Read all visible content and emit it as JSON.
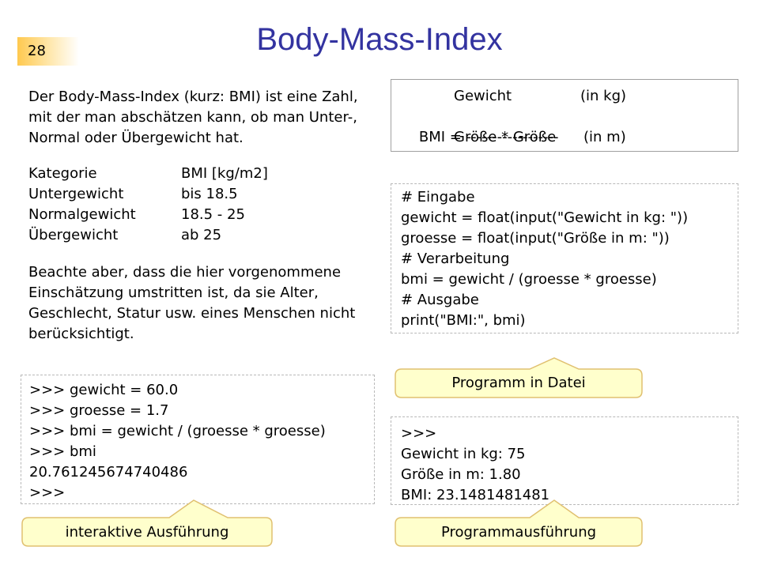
{
  "slide": {
    "page_number": "28",
    "title": "Body-Mass-Index"
  },
  "intro": [
    "Der Body-Mass-Index (kurz: BMI) ist eine Zahl,",
    "mit der man abschätzen kann, ob man Unter-,",
    "Normal oder Übergewicht hat."
  ],
  "bmi_table": {
    "headers": [
      "Kategorie",
      "BMI [kg/m2]"
    ],
    "rows": [
      [
        "Untergewicht",
        "bis 18.5"
      ],
      [
        "Normalgewicht",
        "18.5 - 25"
      ],
      [
        "Übergewicht",
        "ab 25"
      ]
    ]
  },
  "note": [
    "Beachte aber, dass die hier vorgenommene",
    "Einschätzung umstritten ist, da sie Alter,",
    "Geschlecht, Statur usw. eines Menschen nicht",
    "berücksichtigt."
  ],
  "formula": {
    "numerator": "Gewicht",
    "numerator_unit": "(in kg)",
    "lhs": "BMI = ",
    "fraction_bar": "------------------",
    "denominator": "Größe * Größe",
    "denominator_unit": "(in m)"
  },
  "program_code": [
    "# Eingabe",
    "gewicht = float(input(\"Gewicht in kg: \"))",
    "groesse = float(input(\"Größe in m: \"))",
    "# Verarbeitung",
    "bmi = gewicht / (groesse * groesse)",
    "# Ausgabe",
    "print(\"BMI:\", bmi)"
  ],
  "program_label": "Programm in Datei",
  "interactive_session": [
    ">>> gewicht = 60.0",
    ">>> groesse = 1.7",
    ">>> bmi = gewicht / (groesse * groesse)",
    ">>> bmi",
    "20.761245674740486",
    ">>>"
  ],
  "interactive_label": "interaktive Ausführung",
  "program_output": [
    ">>>",
    "Gewicht in kg: 75",
    "Größe in m: 1.80",
    "BMI: 23.1481481481"
  ],
  "output_label": "Programmausführung",
  "colors": {
    "title": "#3333a0",
    "page_tab": "#ffc94f",
    "bubble_fill": "#ffffcc",
    "bubble_stroke": "#e0c070"
  }
}
